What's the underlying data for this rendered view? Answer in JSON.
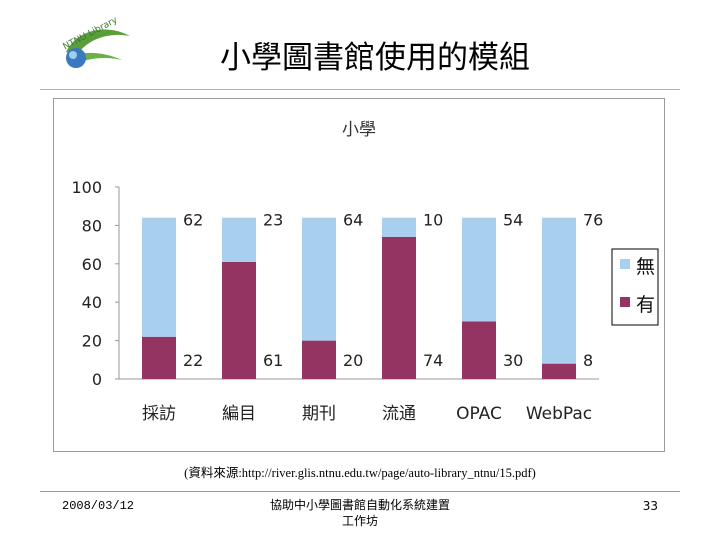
{
  "slide": {
    "title": "小學圖書館使用的模組",
    "logo_text": "NTNU Library",
    "caption": "(資料來源:http://river.glis.ntnu.edu.tw/page/auto-library_ntnu/15.pdf)"
  },
  "footer": {
    "date": "2008/03/12",
    "center_line1": "協助中小學圖書館自動化系統建置",
    "center_line2": "工作坊",
    "page": "33"
  },
  "colors": {
    "none": "#a9cfee",
    "have": "#943463",
    "axis": "#9a9a9a"
  },
  "chart_data": {
    "type": "bar",
    "stacked": true,
    "title": "小學",
    "categories": [
      "採訪",
      "編目",
      "期刊",
      "流通",
      "OPAC",
      "WebPac"
    ],
    "series": [
      {
        "name": "有",
        "values": [
          22,
          61,
          20,
          74,
          30,
          8
        ]
      },
      {
        "name": "無",
        "values": [
          62,
          23,
          64,
          10,
          54,
          76
        ]
      }
    ],
    "yticks": [
      0,
      20,
      40,
      60,
      80,
      100
    ],
    "ylim": [
      0,
      100
    ],
    "xlabel": "",
    "ylabel": "",
    "legend": "right",
    "grid": false
  }
}
